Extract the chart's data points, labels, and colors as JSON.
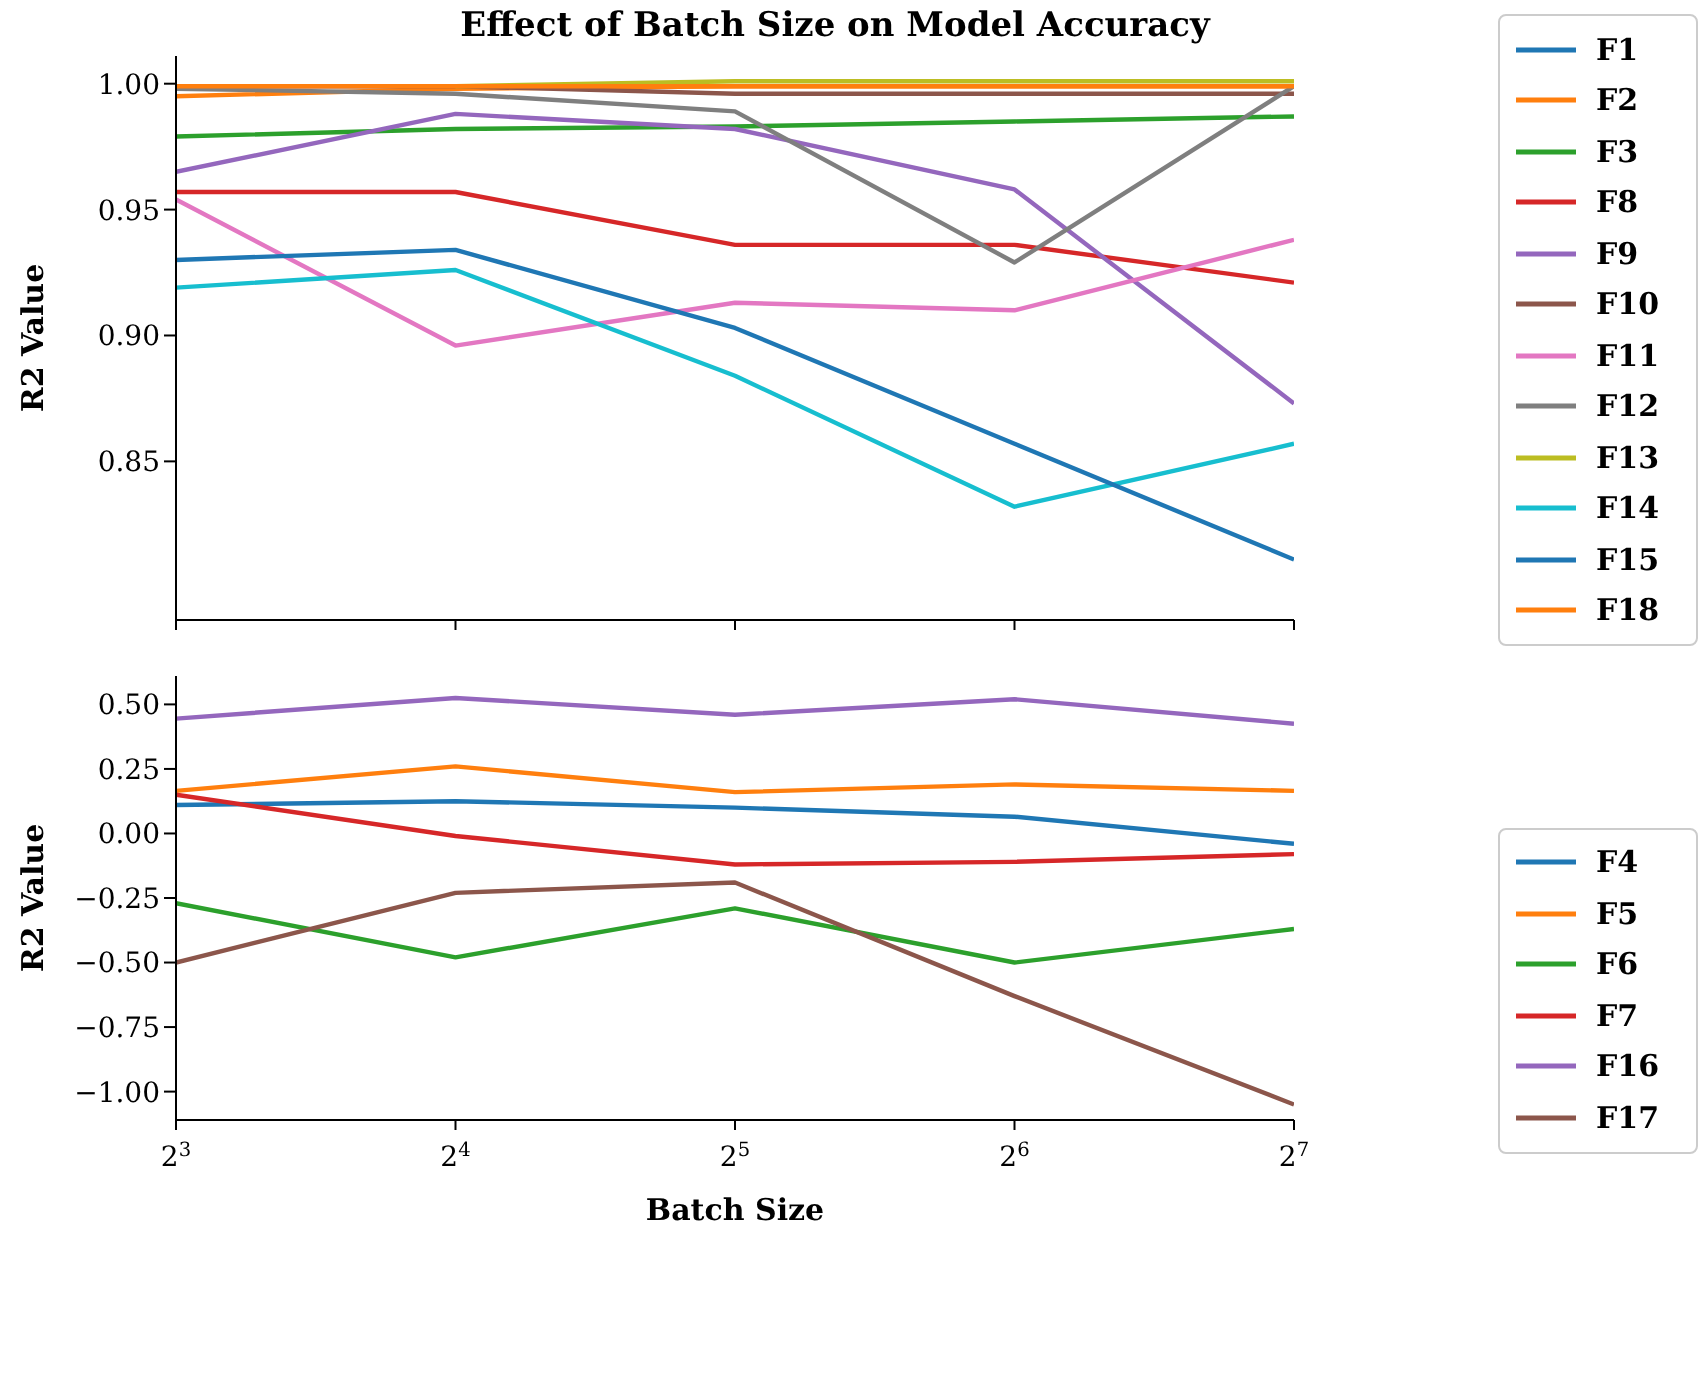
{
  "chart_data": [
    {
      "type": "line",
      "title": "Effect of Batch Size on Model Accuracy",
      "ylabel": "R2 Value",
      "x": [
        8,
        16,
        32,
        64,
        128
      ],
      "log": "x",
      "xlim": [
        8,
        128
      ],
      "xticks": [
        8,
        16,
        32,
        64,
        128
      ],
      "tick_labels": "y",
      "ylim": [
        0.787,
        1.011
      ],
      "yticks": [
        {
          "value": 0.85,
          "label": "0.85"
        },
        {
          "value": 0.9,
          "label": "0.90"
        },
        {
          "value": 0.95,
          "label": "0.95"
        },
        {
          "value": 1.0,
          "label": "1.00"
        }
      ],
      "grid": false,
      "legend": "right",
      "series": [
        {
          "name": "F1",
          "color": "#1f77b4",
          "values": [
            null,
            null,
            null,
            null,
            null
          ]
        },
        {
          "name": "F2",
          "color": "#ff7f0e",
          "values": [
            0.995,
            0.998,
            0.999,
            0.999,
            0.999
          ]
        },
        {
          "name": "F3",
          "color": "#2ca02c",
          "values": [
            0.979,
            0.982,
            0.983,
            0.985,
            0.987
          ]
        },
        {
          "name": "F8",
          "color": "#d62728",
          "values": [
            0.957,
            0.957,
            0.936,
            0.936,
            0.921
          ]
        },
        {
          "name": "F9",
          "color": "#9467bd",
          "values": [
            0.965,
            0.988,
            0.982,
            0.958,
            0.873
          ]
        },
        {
          "name": "F10",
          "color": "#8c564b",
          "values": [
            0.999,
            0.999,
            0.996,
            0.996,
            0.996
          ]
        },
        {
          "name": "F11",
          "color": "#e377c2",
          "values": [
            0.954,
            0.896,
            0.913,
            0.91,
            0.938
          ]
        },
        {
          "name": "F12",
          "color": "#7f7f7f",
          "values": [
            0.998,
            0.996,
            0.989,
            0.929,
            0.999
          ]
        },
        {
          "name": "F13",
          "color": "#bcbd22",
          "values": [
            null,
            0.999,
            1.001,
            1.001,
            1.001
          ]
        },
        {
          "name": "F14",
          "color": "#17becf",
          "values": [
            0.919,
            0.926,
            0.884,
            0.832,
            0.857
          ]
        },
        {
          "name": "F15",
          "color": "#1f77b4",
          "values": [
            0.93,
            0.934,
            0.903,
            0.857,
            0.811
          ]
        },
        {
          "name": "F18",
          "color": "#ff7f0e",
          "values": [
            0.999,
            0.999,
            0.999,
            0.999,
            0.999
          ]
        }
      ]
    },
    {
      "type": "line",
      "xlabel": "Batch Size",
      "ylabel": "R2 Value",
      "x": [
        8,
        16,
        32,
        64,
        128
      ],
      "log": "x",
      "xlim": [
        8,
        128
      ],
      "xticks": [
        {
          "value": 8,
          "label": "2$^{3}$"
        },
        {
          "value": 16,
          "label": "2$^{4}$"
        },
        {
          "value": 32,
          "label": "2$^{5}$"
        },
        {
          "value": 64,
          "label": "2$^{6}$"
        },
        {
          "value": 128,
          "label": "2$^{7}$"
        }
      ],
      "ylim": [
        -1.11,
        0.61
      ],
      "yticks": [
        {
          "value": -1.0,
          "label": "−1.00"
        },
        {
          "value": -0.75,
          "label": "−0.75"
        },
        {
          "value": -0.5,
          "label": "−0.50"
        },
        {
          "value": -0.25,
          "label": "−0.25"
        },
        {
          "value": 0.0,
          "label": "0.00"
        },
        {
          "value": 0.25,
          "label": "0.25"
        },
        {
          "value": 0.5,
          "label": "0.50"
        }
      ],
      "grid": false,
      "legend": "right",
      "series": [
        {
          "name": "F4",
          "color": "#1f77b4",
          "values": [
            0.11,
            0.125,
            0.1,
            0.065,
            -0.04
          ]
        },
        {
          "name": "F5",
          "color": "#ff7f0e",
          "values": [
            0.165,
            0.26,
            0.16,
            0.19,
            0.165
          ]
        },
        {
          "name": "F6",
          "color": "#2ca02c",
          "values": [
            -0.27,
            -0.48,
            -0.29,
            -0.5,
            -0.37
          ]
        },
        {
          "name": "F7",
          "color": "#d62728",
          "values": [
            0.15,
            -0.01,
            -0.12,
            -0.11,
            -0.08
          ]
        },
        {
          "name": "F16",
          "color": "#9467bd",
          "values": [
            0.445,
            0.525,
            0.46,
            0.52,
            0.425
          ]
        },
        {
          "name": "F17",
          "color": "#8c564b",
          "values": [
            -0.5,
            -0.23,
            -0.19,
            -0.63,
            -1.05
          ]
        }
      ]
    }
  ]
}
